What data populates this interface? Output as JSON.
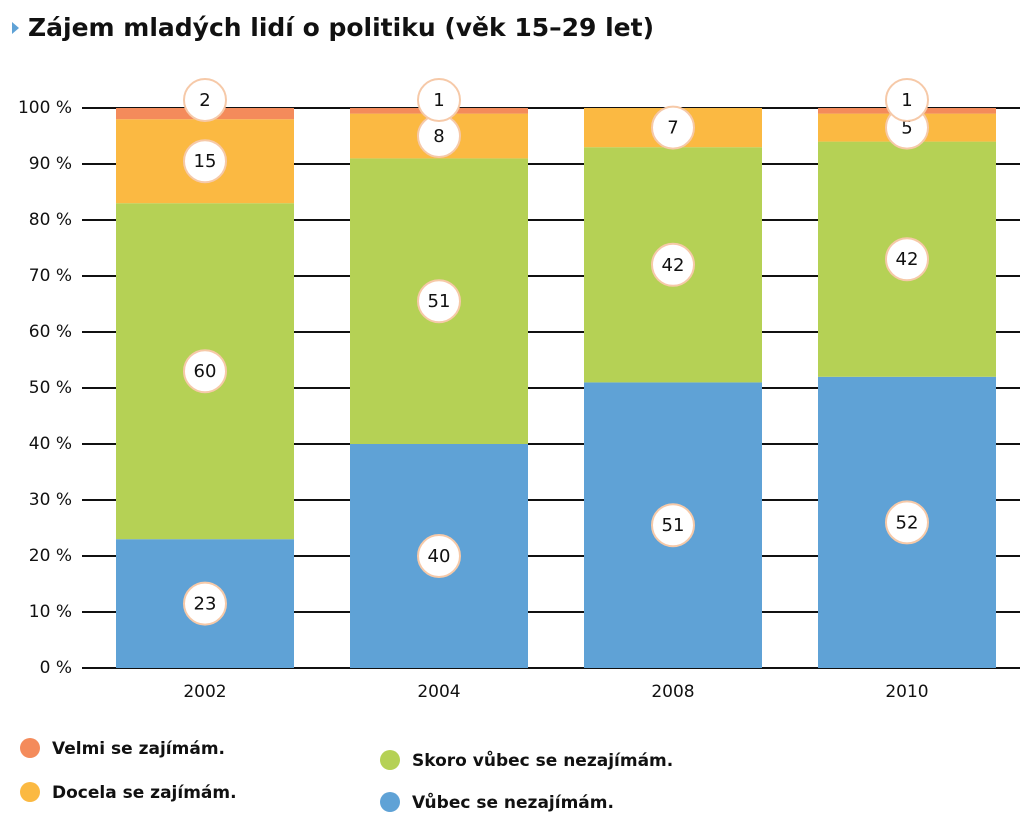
{
  "chart_data": {
    "type": "stacked_bar",
    "title": "Zájem mladých lidí o politiku (věk 15–29 let)",
    "categories": [
      "2002",
      "2004",
      "2008",
      "2010"
    ],
    "series": [
      {
        "name": "Vůbec se nezajímám.",
        "color": "#5fa2d6",
        "values": [
          23,
          40,
          51,
          52
        ]
      },
      {
        "name": "Skoro vůbec se nezajímám.",
        "color": "#b5d155",
        "values": [
          60,
          51,
          42,
          42
        ]
      },
      {
        "name": "Docela se zajímám.",
        "color": "#fbb942",
        "values": [
          15,
          8,
          7,
          5
        ]
      },
      {
        "name": "Velmi se zajímám.",
        "color": "#f48b5b",
        "values": [
          2,
          1,
          null,
          1
        ]
      }
    ],
    "ylim": [
      0,
      100
    ],
    "yticks": [
      {
        "value": 0,
        "label": "0 %"
      },
      {
        "value": 10,
        "label": "10 %"
      },
      {
        "value": 20,
        "label": "20 %"
      },
      {
        "value": 30,
        "label": "30 %"
      },
      {
        "value": 40,
        "label": "40 %"
      },
      {
        "value": 50,
        "label": "50 %"
      },
      {
        "value": 60,
        "label": "60 %"
      },
      {
        "value": 70,
        "label": "70 %"
      },
      {
        "value": 80,
        "label": "80 %"
      },
      {
        "value": 90,
        "label": "90 %"
      },
      {
        "value": 100,
        "label": "100 %"
      }
    ],
    "grid": true
  }
}
